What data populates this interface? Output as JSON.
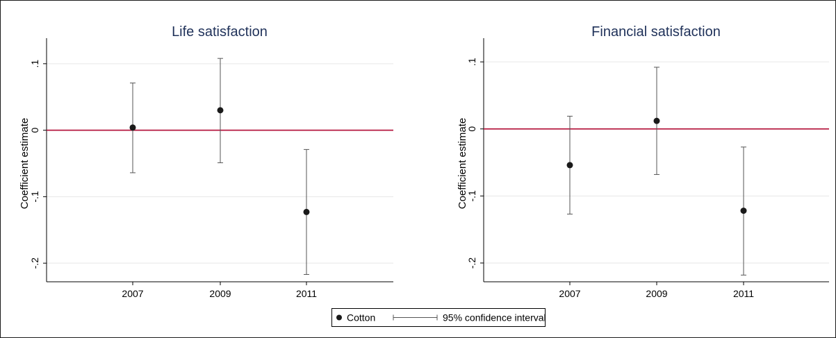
{
  "chart_data": [
    {
      "type": "scatter",
      "title": "Life satisfaction",
      "xlabel": "",
      "ylabel": "Coefficient estimate",
      "categories": [
        "2007",
        "2009",
        "2011"
      ],
      "yticks": [
        {
          "value": 0.1,
          "label": ".1"
        },
        {
          "value": 0,
          "label": "0"
        },
        {
          "value": -0.1,
          "label": "-.1"
        },
        {
          "value": -0.2,
          "label": "-.2"
        }
      ],
      "ylim": [
        -0.228,
        0.128
      ],
      "grid": true,
      "reference_line": {
        "y": 0,
        "color": "#b5173f"
      },
      "series": [
        {
          "name": "Cotton",
          "values": [
            0.004,
            0.03,
            -0.123
          ],
          "ci_low": [
            -0.064,
            -0.049,
            -0.217
          ],
          "ci_high": [
            0.071,
            0.108,
            -0.029
          ]
        }
      ]
    },
    {
      "type": "scatter",
      "title": "Financial satisfaction",
      "xlabel": "",
      "ylabel": "Coefficient estimate",
      "categories": [
        "2007",
        "2009",
        "2011"
      ],
      "yticks": [
        {
          "value": 0.1,
          "label": ".1"
        },
        {
          "value": 0,
          "label": "0"
        },
        {
          "value": -0.1,
          "label": "-.1"
        },
        {
          "value": -0.2,
          "label": "-.2"
        }
      ],
      "ylim": [
        -0.228,
        0.125
      ],
      "grid": true,
      "reference_line": {
        "y": 0,
        "color": "#b5173f"
      },
      "series": [
        {
          "name": "Cotton",
          "values": [
            -0.054,
            0.012,
            -0.122
          ],
          "ci_low": [
            -0.127,
            -0.068,
            -0.218
          ],
          "ci_high": [
            0.019,
            0.092,
            -0.027
          ]
        }
      ]
    }
  ],
  "legend": {
    "placement": "bottom-center",
    "point_label": "Cotton",
    "ci_label": "95% confidence interval"
  }
}
